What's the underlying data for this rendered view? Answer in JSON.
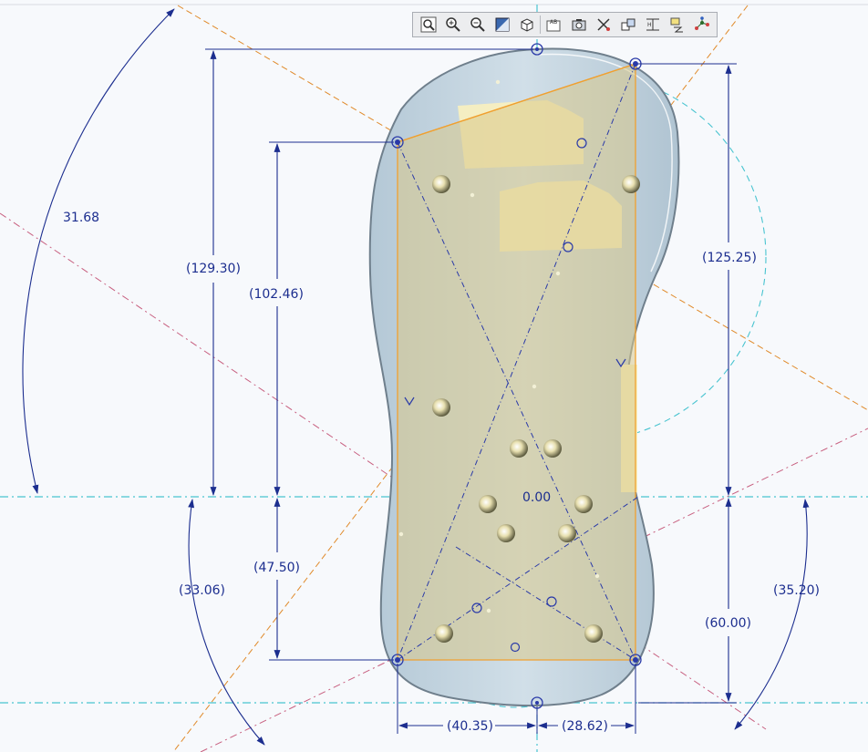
{
  "toolbar": {
    "buttons": [
      {
        "name": "refit-view-icon"
      },
      {
        "name": "zoom-in-icon"
      },
      {
        "name": "zoom-out-icon"
      },
      {
        "name": "shade-display-icon"
      },
      {
        "name": "view-orientation-icon"
      },
      {
        "name": "datum-display-icon"
      },
      {
        "name": "saved-views-icon"
      },
      {
        "name": "constraint-display-icon"
      },
      {
        "name": "dimension-display-icon"
      },
      {
        "name": "vertex-display-icon"
      },
      {
        "name": "grid-display-icon"
      },
      {
        "name": "sketch-points-icon"
      }
    ]
  },
  "dimensions": {
    "angle_top_left": "31.68",
    "vertical_left_outer": "(129.30)",
    "vertical_left_inner": "(102.46)",
    "vertical_right_upper": "(125.25)",
    "vertical_left_lower": "(47.50)",
    "vertical_right_lower": "(60.00)",
    "angle_bottom_left": "(33.06)",
    "angle_bottom_right": "(35.20)",
    "origin_label": "0.00",
    "horizontal_left": "(40.35)",
    "horizontal_right": "(28.62)"
  },
  "colors": {
    "dimension": "#1c2e8f",
    "sketch": "#f0a030",
    "centerline": "#48c4d0",
    "construction": "#c86080",
    "part_fill": "#c6d8e4",
    "highlight": "#f7efc0"
  }
}
